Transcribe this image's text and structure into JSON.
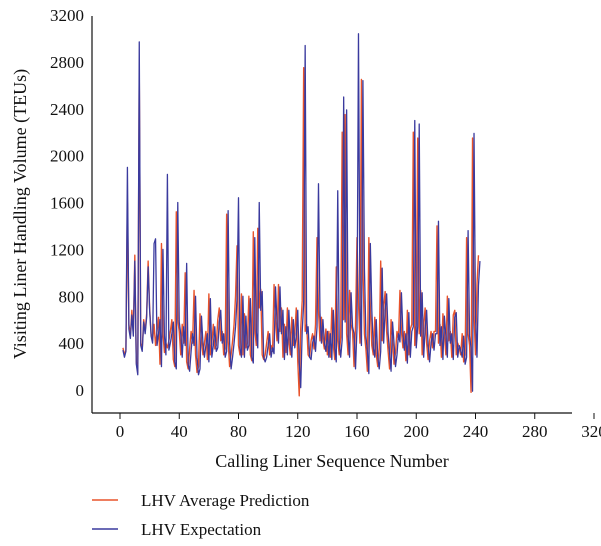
{
  "chart_data": {
    "type": "line",
    "title": "",
    "xlabel": "Calling Liner Sequence Number",
    "ylabel": "Visiting Liner Handling Volume (TEUs)",
    "xlim": [
      -20,
      320
    ],
    "ylim": [
      -200,
      3200
    ],
    "xticks": [
      "0",
      "40",
      "80",
      "120",
      "160",
      "200",
      "240",
      "280",
      "320"
    ],
    "yticks": [
      "0",
      "400",
      "800",
      "1200",
      "1600",
      "2000",
      "2400",
      "2800",
      "3200"
    ],
    "grid": false,
    "legend_position": "bottom-left",
    "series": [
      {
        "name": "LHV Average Prediction",
        "color": "#e8532b",
        "values": [
          360,
          300,
          340,
          1600,
          560,
          460,
          680,
          480,
          1150,
          240,
          150,
          2700,
          400,
          350,
          600,
          500,
          650,
          1100,
          700,
          480,
          420,
          560,
          380,
          500,
          620,
          220,
          1250,
          480,
          320,
          400,
          360,
          420,
          500,
          600,
          260,
          200,
          1520,
          600,
          500,
          300,
          560,
          400,
          1000,
          240,
          180,
          350,
          500,
          400,
          850,
          300,
          150,
          200,
          650,
          420,
          300,
          400,
          500,
          260,
          820,
          300,
          400,
          560,
          350,
          380,
          600,
          700,
          420,
          500,
          300,
          350,
          1500,
          420,
          200,
          300,
          420,
          560,
          800,
          1230,
          380,
          300,
          820,
          300,
          650,
          360,
          400,
          800,
          300,
          250,
          1350,
          520,
          380,
          1380,
          700,
          860,
          300,
          260,
          300,
          400,
          500,
          300,
          380,
          330,
          900,
          600,
          420,
          900,
          500,
          700,
          280,
          560,
          320,
          700,
          420,
          300,
          620,
          380,
          480,
          700,
          250,
          -50,
          520,
          760,
          2750,
          500,
          560,
          300,
          280,
          420,
          480,
          350,
          560,
          1300,
          680,
          420,
          620,
          420,
          350,
          520,
          300,
          500,
          280,
          700,
          380,
          260,
          1050,
          420,
          300,
          450,
          2200,
          600,
          2350,
          480,
          300,
          850,
          560,
          500,
          200,
          550,
          1300,
          750,
          400,
          2650,
          1050,
          480,
          350,
          160,
          1300,
          700,
          380,
          300,
          620,
          300,
          200,
          350,
          1100,
          420,
          700,
          840,
          500,
          330,
          180,
          600,
          420,
          220,
          320,
          500,
          430,
          850,
          500,
          360,
          500,
          250,
          680,
          300,
          520,
          560,
          2200,
          380,
          560,
          2150,
          480,
          850,
          300,
          540,
          700,
          400,
          260,
          420,
          500,
          360,
          500,
          500,
          1400,
          400,
          560,
          280,
          650,
          480,
          300,
          800,
          420,
          500,
          280,
          640,
          680,
          300,
          400,
          360,
          300,
          480,
          240,
          300,
          1300,
          480,
          380,
          -20,
          2150,
          640,
          300,
          900,
          1150
        ],
        "x_start": 2,
        "x_step": 1
      },
      {
        "name": "LHV Expectation",
        "color": "#3a3a9e",
        "values": [
          340,
          280,
          330,
          1900,
          520,
          440,
          640,
          460,
          1100,
          220,
          130,
          2970,
          380,
          330,
          580,
          480,
          620,
          1050,
          680,
          460,
          400,
          1250,
          1290,
          380,
          480,
          600,
          200,
          1200,
          460,
          300,
          1840,
          340,
          400,
          480,
          580,
          240,
          180,
          1600,
          580,
          480,
          280,
          540,
          380,
          1080,
          220,
          160,
          330,
          480,
          380,
          800,
          280,
          130,
          180,
          630,
          400,
          280,
          380,
          480,
          240,
          780,
          280,
          380,
          540,
          330,
          360,
          580,
          680,
          400,
          480,
          280,
          330,
          1530,
          400,
          180,
          280,
          400,
          540,
          780,
          1640,
          360,
          280,
          800,
          280,
          630,
          340,
          380,
          780,
          280,
          230,
          1300,
          500,
          360,
          1600,
          680,
          840,
          280,
          240,
          280,
          380,
          480,
          280,
          360,
          310,
          880,
          580,
          400,
          880,
          480,
          680,
          260,
          540,
          300,
          680,
          400,
          280,
          600,
          360,
          460,
          680,
          230,
          20,
          500,
          740,
          2940,
          480,
          540,
          280,
          260,
          400,
          460,
          330,
          540,
          1760,
          660,
          400,
          600,
          400,
          330,
          500,
          280,
          480,
          260,
          680,
          360,
          240,
          1700,
          400,
          280,
          430,
          2500,
          580,
          2390,
          460,
          280,
          830,
          540,
          480,
          180,
          530,
          3040,
          730,
          380,
          2640,
          1040,
          460,
          330,
          140,
          1250,
          680,
          360,
          280,
          600,
          280,
          180,
          330,
          1040,
          400,
          680,
          820,
          480,
          310,
          160,
          580,
          400,
          200,
          300,
          480,
          410,
          830,
          480,
          340,
          480,
          230,
          660,
          280,
          500,
          540,
          2300,
          360,
          540,
          2270,
          460,
          830,
          280,
          520,
          680,
          380,
          240,
          400,
          480,
          340,
          480,
          480,
          1440,
          380,
          540,
          260,
          630,
          460,
          280,
          780,
          400,
          480,
          260,
          620,
          660,
          280,
          380,
          340,
          280,
          460,
          220,
          280,
          1360,
          460,
          360,
          -10,
          2190,
          620,
          280,
          890,
          1100
        ],
        "x_start": 2,
        "x_step": 1
      }
    ]
  }
}
